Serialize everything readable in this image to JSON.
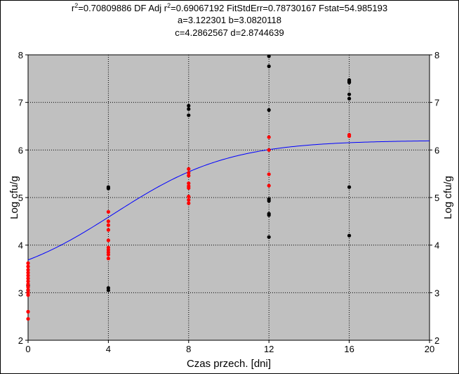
{
  "stats": {
    "r2_label": "r",
    "r2_sup": "2",
    "r2_value": "=0.70809886  DF Adj r",
    "adj_sup": "2",
    "rest": "=0.69067192  FitStdErr=0.78730167  Fstat=54.985193",
    "line2": "a=3.122301 b=3.0820118",
    "line3": "c=4.2862567 d=2.8744639"
  },
  "chart_data": {
    "type": "scatter",
    "title": "",
    "xlabel": "Czas przech. [dni]",
    "ylabel": "Log cfu/g",
    "ylabel_right": "Log cfu/g",
    "xlim": [
      0,
      20
    ],
    "ylim": [
      2,
      8
    ],
    "x_ticks": [
      "0",
      "4",
      "8",
      "12",
      "16",
      "20"
    ],
    "y_ticks": [
      "2",
      "3",
      "4",
      "5",
      "6",
      "7",
      "8"
    ],
    "grid": "dotted at x=4,8,12,16 and y=3..7",
    "background_color": "#c0c0c0",
    "series": [
      {
        "color": "#000000",
        "points": [
          [
            0,
            3.05
          ],
          [
            0,
            3.15
          ],
          [
            4,
            5.22
          ],
          [
            4,
            5.19
          ],
          [
            4,
            3.1
          ],
          [
            4,
            3.05
          ],
          [
            8,
            6.93
          ],
          [
            8,
            6.86
          ],
          [
            8,
            6.73
          ],
          [
            12,
            7.97
          ],
          [
            12,
            7.76
          ],
          [
            12,
            6.84
          ],
          [
            12,
            4.97
          ],
          [
            12,
            4.93
          ],
          [
            12,
            4.66
          ],
          [
            12,
            4.63
          ],
          [
            12,
            4.17
          ],
          [
            16,
            7.47
          ],
          [
            16,
            7.44
          ],
          [
            16,
            7.42
          ],
          [
            16,
            7.17
          ],
          [
            16,
            7.08
          ],
          [
            16,
            5.22
          ],
          [
            16,
            4.2
          ]
        ]
      },
      {
        "color": "#ff0000",
        "points": [
          [
            0,
            3.62
          ],
          [
            0,
            3.55
          ],
          [
            0,
            3.48
          ],
          [
            0,
            3.42
          ],
          [
            0,
            3.36
          ],
          [
            0,
            3.3
          ],
          [
            0,
            3.24
          ],
          [
            0,
            3.18
          ],
          [
            0,
            3.12
          ],
          [
            0,
            3.06
          ],
          [
            0,
            3.0
          ],
          [
            0,
            2.95
          ],
          [
            0,
            2.6
          ],
          [
            0,
            2.45
          ],
          [
            4,
            4.7
          ],
          [
            4,
            4.5
          ],
          [
            4,
            4.42
          ],
          [
            4,
            4.32
          ],
          [
            4,
            4.1
          ],
          [
            4,
            3.95
          ],
          [
            4,
            3.9
          ],
          [
            4,
            3.85
          ],
          [
            4,
            3.8
          ],
          [
            4,
            3.72
          ],
          [
            8,
            5.6
          ],
          [
            8,
            5.52
          ],
          [
            8,
            5.46
          ],
          [
            8,
            5.3
          ],
          [
            8,
            5.24
          ],
          [
            8,
            5.2
          ],
          [
            8,
            5.02
          ],
          [
            8,
            4.95
          ],
          [
            8,
            4.88
          ],
          [
            12,
            6.27
          ],
          [
            12,
            6.0
          ],
          [
            12,
            5.49
          ],
          [
            12,
            5.25
          ],
          [
            16,
            6.32
          ],
          [
            16,
            6.29
          ]
        ]
      }
    ],
    "fit_curve": {
      "color": "#0000ff",
      "a": 3.122301,
      "b": 3.0820118,
      "c": 4.2862567,
      "d": 2.8744639
    }
  }
}
